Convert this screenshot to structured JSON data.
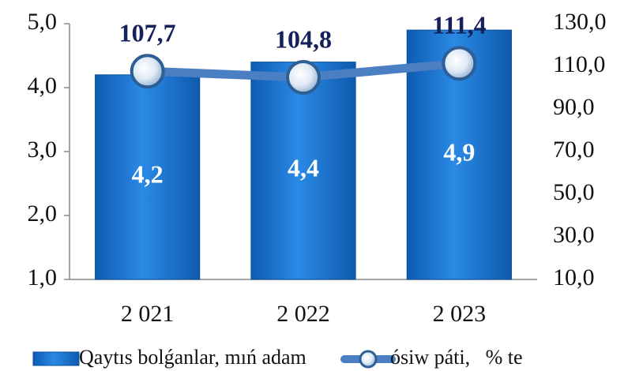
{
  "chart_data": {
    "type": "combo",
    "categories": [
      "2 021",
      "2 022",
      "2 023"
    ],
    "series": [
      {
        "name": "Qaytıs bolǵanlar, mıń adam",
        "type": "bar",
        "color": "#1f77d0",
        "values": [
          4.2,
          4.4,
          4.9
        ],
        "value_labels": [
          "4,2",
          "4,4",
          "4,9"
        ]
      },
      {
        "name": "ósiw páti,   % te",
        "type": "line",
        "axis": "y2",
        "color": "#4a7fc4",
        "values": [
          107.7,
          104.8,
          111.4
        ],
        "value_labels": [
          "107,7",
          "104,8",
          "111,4"
        ]
      }
    ],
    "ylim": [
      1,
      5
    ],
    "yticks": [
      {
        "value": 1,
        "label": "1,0"
      },
      {
        "value": 2,
        "label": "2,0"
      },
      {
        "value": 3,
        "label": "3,0"
      },
      {
        "value": 4,
        "label": "4,0"
      },
      {
        "value": 5,
        "label": "5,0"
      }
    ],
    "y2lim": [
      10,
      130
    ],
    "y2ticks": [
      {
        "value": 10,
        "label": "10,0"
      },
      {
        "value": 30,
        "label": "30,0"
      },
      {
        "value": 50,
        "label": "50,0"
      },
      {
        "value": 70,
        "label": "70,0"
      },
      {
        "value": 90,
        "label": "90,0"
      },
      {
        "value": 110,
        "label": "110,0"
      },
      {
        "value": 130,
        "label": "130,0"
      }
    ]
  }
}
